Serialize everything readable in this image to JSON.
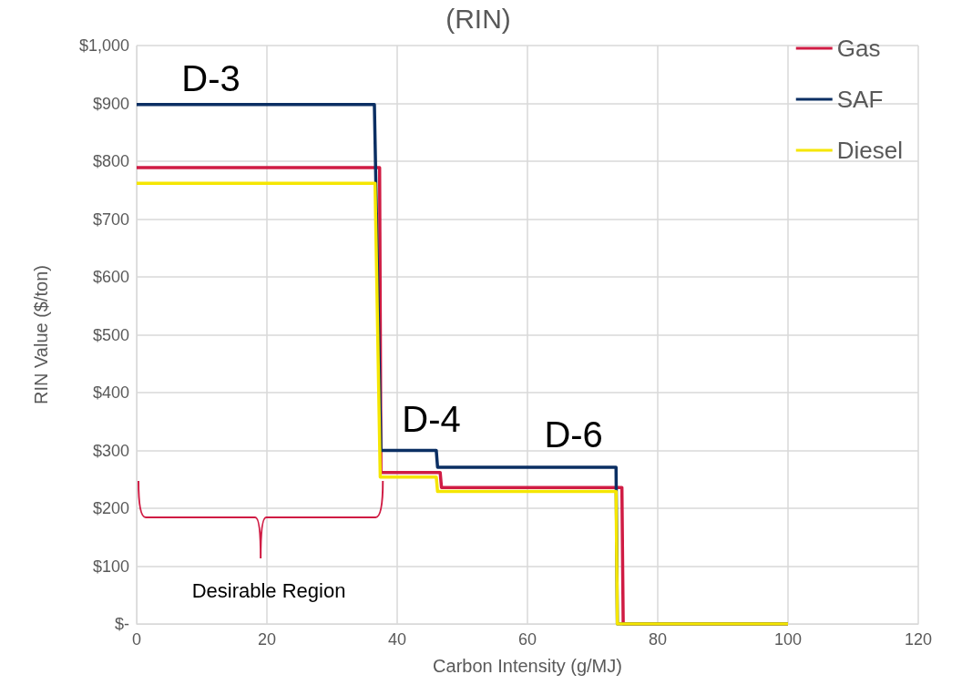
{
  "chart_data": {
    "type": "line",
    "title": "(RIN)",
    "xlabel": "Carbon Intensity (g/MJ)",
    "ylabel": "RIN Value ($/ton)",
    "series": [
      {
        "name": "Gas",
        "color": "#d01c44",
        "x": [
          0,
          37.3,
          37.5,
          46.6,
          46.8,
          74.5,
          74.7,
          100
        ],
        "values": [
          789,
          789,
          262,
          262,
          236,
          236,
          0,
          0
        ]
      },
      {
        "name": "SAF",
        "color": "#0b2f63",
        "x": [
          0,
          36.5,
          37.5,
          46.0,
          46.2,
          73.6,
          73.8,
          100
        ],
        "values": [
          898,
          898,
          300,
          300,
          271,
          271,
          0,
          0
        ]
      },
      {
        "name": "Diesel",
        "color": "#f5e600",
        "x": [
          0,
          36.6,
          37.4,
          46.0,
          46.2,
          73.6,
          73.8,
          100
        ],
        "values": [
          762,
          762,
          254,
          254,
          229,
          229,
          0,
          0
        ]
      }
    ],
    "xlim": [
      0,
      120
    ],
    "xticks": [
      0,
      20,
      40,
      60,
      80,
      100,
      120
    ],
    "ylim": [
      0,
      1000
    ],
    "yticks": [
      {
        "value": 0,
        "label": "$-"
      },
      {
        "value": 100,
        "label": "$100"
      },
      {
        "value": 200,
        "label": "$200"
      },
      {
        "value": 300,
        "label": "$300"
      },
      {
        "value": 400,
        "label": "$400"
      },
      {
        "value": 500,
        "label": "$500"
      },
      {
        "value": 600,
        "label": "$600"
      },
      {
        "value": 700,
        "label": "$700"
      },
      {
        "value": 800,
        "label": "$800"
      },
      {
        "value": 900,
        "label": "$900"
      },
      {
        "value": 1000,
        "label": "$1,000"
      }
    ],
    "grid": true,
    "legend": "top right",
    "marker": "none",
    "line_style": "solid",
    "annotations": [
      "D-3",
      "D-4",
      "D-6",
      "Desirable Region"
    ]
  }
}
